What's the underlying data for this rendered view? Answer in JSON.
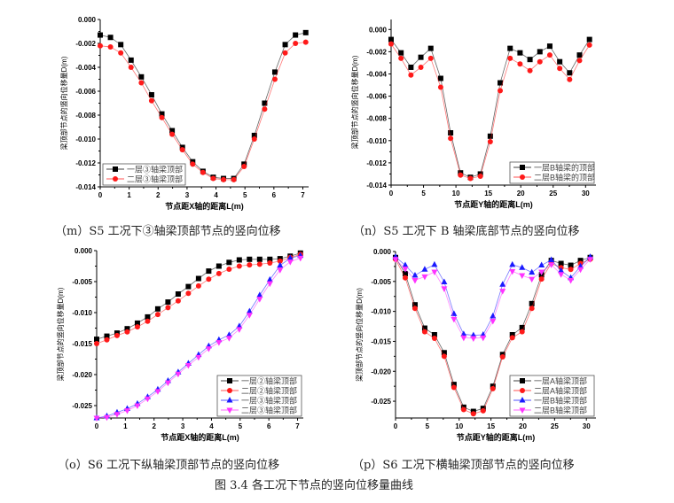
{
  "figure_caption": "图 3.4  各工况下节点的竖向位移量曲线",
  "colors": {
    "black": "#000000",
    "red": "#ff1a1a",
    "blue": "#1a1aff",
    "magenta": "#ff33ff"
  },
  "chart_data": [
    {
      "id": "m",
      "type": "line",
      "caption": "（m）S5 工况下③轴梁顶部节点的竖向位移",
      "xlabel": "节点距X轴的距离L(m)",
      "ylabel": "梁顶部节点的竖向位移量D(m)",
      "xlim": [
        0,
        7.2
      ],
      "ylim": [
        -0.014,
        0.0
      ],
      "xticks": [
        0,
        1,
        2,
        3,
        4,
        5,
        6,
        7
      ],
      "yticks": [
        0,
        -0.002,
        -0.004,
        -0.006,
        -0.008,
        -0.01,
        -0.012,
        -0.014
      ],
      "ydecimals": 3,
      "legend": "bottom-left",
      "x": [
        0,
        0.355,
        0.71,
        1.065,
        1.42,
        1.775,
        2.13,
        2.485,
        2.84,
        3.195,
        3.55,
        3.905,
        4.26,
        4.615,
        4.97,
        5.325,
        5.68,
        6.035,
        6.39,
        6.745,
        7.1
      ],
      "series": [
        {
          "name": "一层③轴梁顶部",
          "color": "#000000",
          "marker": "square",
          "values": [
            -0.0013,
            -0.0015,
            -0.0021,
            -0.0034,
            -0.0048,
            -0.0063,
            -0.0079,
            -0.0093,
            -0.0107,
            -0.0119,
            -0.0127,
            -0.0132,
            -0.0133,
            -0.0133,
            -0.0121,
            -0.0097,
            -0.007,
            -0.0044,
            -0.0021,
            -0.0013,
            -0.0011
          ]
        },
        {
          "name": "二层③轴梁顶部",
          "color": "#ff1a1a",
          "marker": "circle",
          "values": [
            -0.0022,
            -0.0023,
            -0.0028,
            -0.004,
            -0.0053,
            -0.0068,
            -0.0082,
            -0.0096,
            -0.0109,
            -0.0121,
            -0.0128,
            -0.0133,
            -0.0134,
            -0.0134,
            -0.0123,
            -0.01,
            -0.0075,
            -0.005,
            -0.0028,
            -0.002,
            -0.0019
          ]
        }
      ]
    },
    {
      "id": "n",
      "type": "line",
      "caption": "（n）S5 工况下 B 轴梁底部节点的竖向位移",
      "xlabel": "节点距Y轴的距离L(m)",
      "ylabel": "梁顶部节点的竖向位移量D(m)",
      "xlim": [
        0,
        31.6
      ],
      "ylim": [
        -0.014,
        0.0009
      ],
      "xticks": [
        0,
        5,
        10,
        15,
        20,
        25,
        30
      ],
      "yticks": [
        0,
        -0.002,
        -0.004,
        -0.006,
        -0.008,
        -0.01,
        -0.012,
        -0.014
      ],
      "ydecimals": 3,
      "legend": "bottom-right",
      "x": [
        0,
        1.53,
        3.06,
        4.59,
        6.12,
        7.65,
        9.18,
        10.71,
        12.24,
        13.77,
        15.3,
        16.83,
        18.36,
        19.89,
        21.42,
        22.95,
        24.48,
        26.01,
        27.54,
        29.07,
        30.6
      ],
      "series": [
        {
          "name": "一层B轴梁的顶部",
          "color": "#000000",
          "marker": "square",
          "values": [
            -0.0009,
            -0.0021,
            -0.0034,
            -0.0025,
            -0.0017,
            -0.0044,
            -0.0093,
            -0.0129,
            -0.0133,
            -0.013,
            -0.0096,
            -0.0048,
            -0.0017,
            -0.0021,
            -0.0027,
            -0.002,
            -0.0015,
            -0.0029,
            -0.0039,
            -0.0023,
            -0.0009
          ]
        },
        {
          "name": "二层B轴梁的顶部",
          "color": "#ff1a1a",
          "marker": "circle",
          "values": [
            -0.0013,
            -0.0026,
            -0.0041,
            -0.0034,
            -0.0026,
            -0.0052,
            -0.0098,
            -0.0131,
            -0.0134,
            -0.0132,
            -0.0101,
            -0.0055,
            -0.0026,
            -0.0031,
            -0.0037,
            -0.0029,
            -0.0023,
            -0.0035,
            -0.0045,
            -0.0028,
            -0.0014
          ]
        }
      ]
    },
    {
      "id": "o",
      "type": "line",
      "caption": "（o）S6 工况下纵轴梁顶部节点的竖向位移",
      "xlabel": "节点距X轴的距离L(m)",
      "ylabel": "梁顶部节点的竖向位移量D(m)",
      "xlim": [
        0,
        7.2
      ],
      "ylim": [
        -0.027,
        0.0
      ],
      "xticks": [
        0,
        1,
        2,
        3,
        4,
        5,
        6,
        7
      ],
      "yticks": [
        0,
        -0.005,
        -0.01,
        -0.015,
        -0.02,
        -0.025
      ],
      "ydecimals": 3,
      "legend": "bottom-right",
      "x": [
        0,
        0.355,
        0.71,
        1.065,
        1.42,
        1.775,
        2.13,
        2.485,
        2.84,
        3.195,
        3.55,
        3.905,
        4.26,
        4.615,
        4.97,
        5.325,
        5.68,
        6.035,
        6.39,
        6.745,
        7.1
      ],
      "series": [
        {
          "name": "一层②轴梁顶部",
          "color": "#000000",
          "marker": "square",
          "values": [
            -0.0143,
            -0.0138,
            -0.0133,
            -0.0126,
            -0.0117,
            -0.0107,
            -0.0094,
            -0.0083,
            -0.007,
            -0.0058,
            -0.0045,
            -0.0033,
            -0.0025,
            -0.0019,
            -0.0015,
            -0.0014,
            -0.0014,
            -0.0014,
            -0.0013,
            -0.0009,
            -0.0004
          ]
        },
        {
          "name": "二层②轴梁顶部",
          "color": "#ff1a1a",
          "marker": "circle",
          "values": [
            -0.015,
            -0.0144,
            -0.0137,
            -0.0131,
            -0.0123,
            -0.0114,
            -0.0103,
            -0.0092,
            -0.0081,
            -0.0069,
            -0.0057,
            -0.0046,
            -0.0037,
            -0.003,
            -0.0025,
            -0.0023,
            -0.0022,
            -0.002,
            -0.0017,
            -0.0011,
            -0.0006
          ]
        },
        {
          "name": "一层③轴梁顶部",
          "color": "#1a1aff",
          "marker": "triangle-up",
          "values": [
            -0.027,
            -0.0267,
            -0.0261,
            -0.0255,
            -0.0247,
            -0.0236,
            -0.0224,
            -0.021,
            -0.0196,
            -0.0182,
            -0.0168,
            -0.0154,
            -0.0144,
            -0.0136,
            -0.0122,
            -0.0098,
            -0.0072,
            -0.0047,
            -0.0024,
            -0.0012,
            -0.0008
          ]
        },
        {
          "name": "二层③轴梁顶部",
          "color": "#ff33ff",
          "marker": "triangle-down",
          "values": [
            -0.027,
            -0.0269,
            -0.0264,
            -0.0258,
            -0.025,
            -0.0239,
            -0.0227,
            -0.0213,
            -0.0199,
            -0.0185,
            -0.0172,
            -0.0158,
            -0.0148,
            -0.0141,
            -0.0127,
            -0.0104,
            -0.0078,
            -0.0053,
            -0.0031,
            -0.0018,
            -0.0012
          ]
        }
      ]
    },
    {
      "id": "p",
      "type": "line",
      "caption": "（p）S6 工况下横轴梁顶部节点的竖向位移",
      "xlabel": "节点距Y轴的距离L(m)",
      "ylabel": "梁顶部节点的竖向位移量D(m)",
      "xlim": [
        0,
        31.5
      ],
      "ylim": [
        -0.0278,
        0.0
      ],
      "xticks": [
        0,
        5,
        10,
        15,
        20,
        25,
        30
      ],
      "yticks": [
        0,
        -0.005,
        -0.01,
        -0.015,
        -0.02,
        -0.025
      ],
      "ydecimals": 3,
      "legend": "bottom-right",
      "x": [
        0,
        1.53,
        3.06,
        4.59,
        6.12,
        7.65,
        9.18,
        10.71,
        12.24,
        13.77,
        15.3,
        16.83,
        18.36,
        19.89,
        21.42,
        22.95,
        24.48,
        26.01,
        27.54,
        29.07,
        30.6
      ],
      "series": [
        {
          "name": "一层A轴梁顶部",
          "color": "#000000",
          "marker": "square",
          "values": [
            -0.001,
            -0.0037,
            -0.0089,
            -0.0128,
            -0.0139,
            -0.0169,
            -0.0222,
            -0.026,
            -0.0267,
            -0.0262,
            -0.0225,
            -0.0172,
            -0.0139,
            -0.0127,
            -0.0087,
            -0.0039,
            -0.0015,
            -0.002,
            -0.0023,
            -0.0015,
            -0.001
          ]
        },
        {
          "name": "二层A轴梁顶部",
          "color": "#ff1a1a",
          "marker": "circle",
          "values": [
            -0.0013,
            -0.0044,
            -0.0095,
            -0.0134,
            -0.0145,
            -0.0175,
            -0.0227,
            -0.0264,
            -0.0271,
            -0.0266,
            -0.0229,
            -0.0176,
            -0.0144,
            -0.0134,
            -0.0095,
            -0.0046,
            -0.002,
            -0.0027,
            -0.003,
            -0.002,
            -0.0013
          ]
        },
        {
          "name": "一层B轴梁顶部",
          "color": "#1a1aff",
          "marker": "triangle-up",
          "values": [
            -0.0009,
            -0.0023,
            -0.004,
            -0.003,
            -0.0022,
            -0.0051,
            -0.0104,
            -0.0138,
            -0.014,
            -0.0139,
            -0.0108,
            -0.0055,
            -0.0022,
            -0.0027,
            -0.0035,
            -0.0023,
            -0.0014,
            -0.0032,
            -0.0044,
            -0.0025,
            -0.0009
          ]
        },
        {
          "name": "二层B轴梁顶部",
          "color": "#ff33ff",
          "marker": "triangle-down",
          "values": [
            -0.0013,
            -0.0029,
            -0.0048,
            -0.0042,
            -0.0034,
            -0.0062,
            -0.0113,
            -0.0144,
            -0.0145,
            -0.0144,
            -0.0116,
            -0.0066,
            -0.0033,
            -0.004,
            -0.0046,
            -0.0034,
            -0.0022,
            -0.0038,
            -0.0048,
            -0.003,
            -0.0013
          ]
        }
      ]
    }
  ]
}
